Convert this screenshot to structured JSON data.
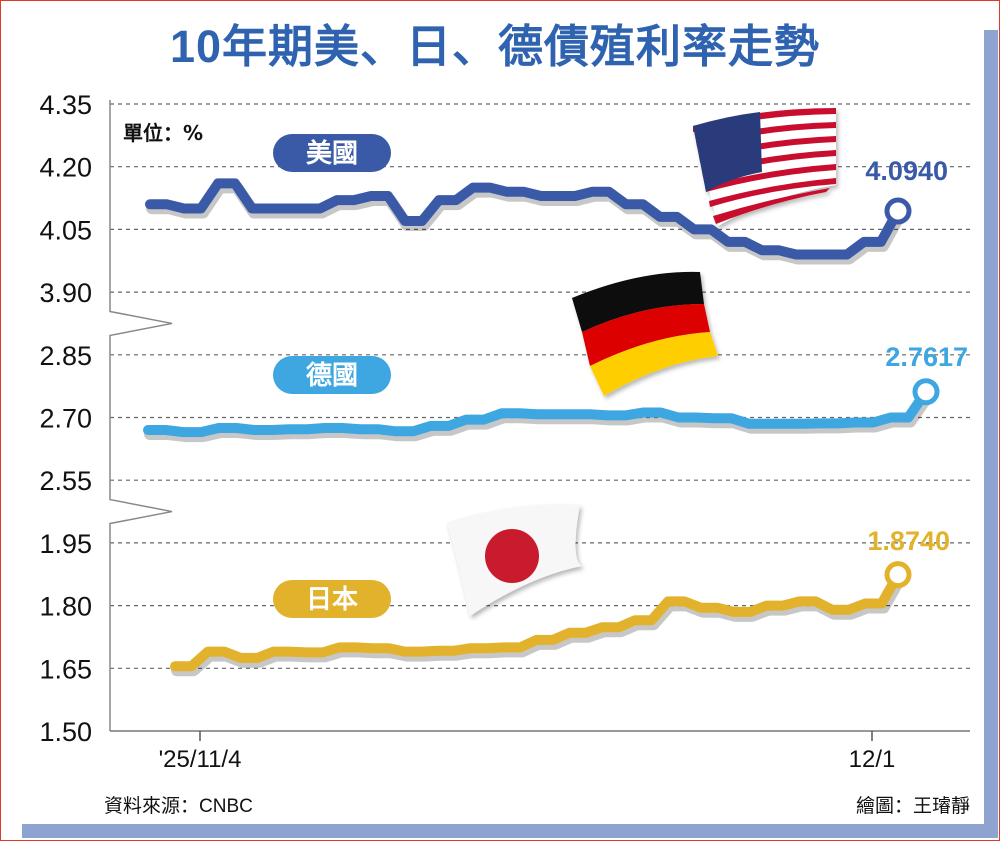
{
  "title": "10年期美、日、德債殖利率走勢",
  "unit_label": "單位：%",
  "source": "資料來源：CNBC",
  "credit": "繪圖：王璿靜",
  "colors": {
    "title": "#2f63b0",
    "us": "#3a5aa8",
    "de": "#3ea6e0",
    "jp": "#e2b22c"
  },
  "chart_data": {
    "type": "line",
    "title": "10年期美、日、德債殖利率走勢",
    "ylabel": "單位：%",
    "y_ticks": [
      "4.35",
      "4.20",
      "4.05",
      "3.90",
      "2.85",
      "2.70",
      "2.55",
      "1.95",
      "1.80",
      "1.65",
      "1.50"
    ],
    "x_tick_labels": [
      "'25/11/4",
      "12/1"
    ],
    "grid": true,
    "axis_breaks": [
      "3.90–2.85",
      "2.55–1.95"
    ],
    "series": [
      {
        "name": "美國",
        "color": "#3a5aa8",
        "flag_icon": "us-flag-icon",
        "last_value_label": "4.0940",
        "values": [
          4.11,
          4.11,
          4.1,
          4.1,
          4.16,
          4.16,
          4.1,
          4.1,
          4.1,
          4.1,
          4.1,
          4.12,
          4.12,
          4.13,
          4.13,
          4.07,
          4.07,
          4.12,
          4.12,
          4.15,
          4.15,
          4.14,
          4.14,
          4.13,
          4.13,
          4.13,
          4.14,
          4.14,
          4.11,
          4.11,
          4.08,
          4.08,
          4.05,
          4.05,
          4.02,
          4.02,
          4.0,
          4.0,
          3.99,
          3.99,
          3.99,
          3.99,
          4.02,
          4.02,
          4.094
        ]
      },
      {
        "name": "德國",
        "color": "#3ea6e0",
        "flag_icon": "germany-flag-icon",
        "last_value_label": "2.7617",
        "values": [
          2.67,
          2.67,
          2.665,
          2.665,
          2.675,
          2.675,
          2.67,
          2.67,
          2.672,
          2.672,
          2.675,
          2.675,
          2.672,
          2.672,
          2.667,
          2.667,
          2.68,
          2.68,
          2.695,
          2.695,
          2.71,
          2.71,
          2.708,
          2.708,
          2.708,
          2.708,
          2.705,
          2.705,
          2.712,
          2.712,
          2.7,
          2.7,
          2.698,
          2.698,
          2.685,
          2.685,
          2.685,
          2.685,
          2.686,
          2.686,
          2.688,
          2.688,
          2.7,
          2.7,
          2.7617
        ]
      },
      {
        "name": "日本",
        "color": "#e2b22c",
        "flag_icon": "japan-flag-icon",
        "last_value_label": "1.8740",
        "values": [
          1.655,
          1.655,
          1.69,
          1.69,
          1.675,
          1.675,
          1.69,
          1.69,
          1.688,
          1.688,
          1.7,
          1.7,
          1.698,
          1.698,
          1.69,
          1.69,
          1.692,
          1.692,
          1.698,
          1.698,
          1.7,
          1.7,
          1.718,
          1.718,
          1.735,
          1.735,
          1.748,
          1.748,
          1.765,
          1.765,
          1.81,
          1.81,
          1.795,
          1.795,
          1.785,
          1.785,
          1.8,
          1.8,
          1.81,
          1.81,
          1.79,
          1.79,
          1.805,
          1.805,
          1.874
        ]
      }
    ]
  }
}
